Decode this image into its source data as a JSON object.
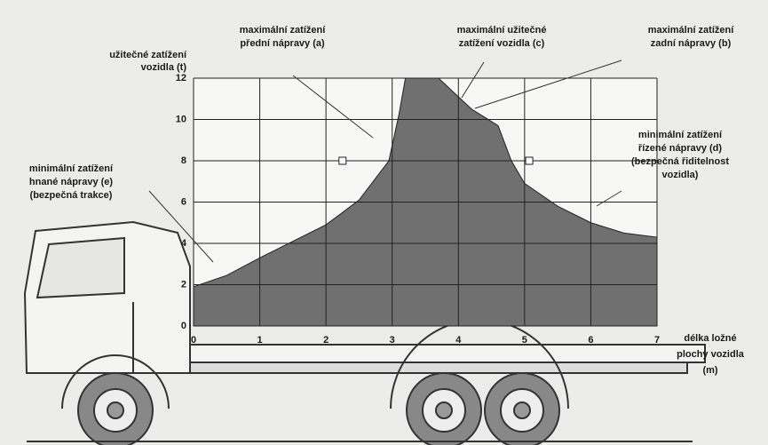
{
  "chart_data": {
    "type": "area",
    "y_label": [
      "užitečné zatížení",
      "vozidla (t)"
    ],
    "x_label": [
      "délka ložné",
      "plochy vozidla",
      "(m)"
    ],
    "x": [
      0,
      0.5,
      1,
      1.5,
      2,
      2.5,
      2.95,
      3.1,
      3.2,
      3.7,
      4.2,
      4.6,
      4.8,
      5,
      5.5,
      6,
      6.5,
      7
    ],
    "values": [
      1.9,
      2.45,
      3.3,
      4.1,
      4.9,
      6.1,
      8,
      10.2,
      12,
      12,
      10.5,
      9.7,
      8,
      6.9,
      5.8,
      5,
      4.5,
      4.3
    ],
    "color": "#707070",
    "points": {
      "x": [
        2.25,
        5.07
      ],
      "y": [
        8,
        8
      ]
    },
    "xlim": [
      0,
      7
    ],
    "ylim": [
      0,
      12
    ],
    "xticks": [
      0,
      1,
      2,
      3,
      4,
      5,
      6,
      7
    ],
    "yticks": [
      0,
      2,
      4,
      6,
      8,
      10,
      12
    ],
    "grid": true,
    "annotations": [
      [
        "maximální zatížení",
        "přední nápravy (a)"
      ],
      [
        "maximální užitečné",
        "zatížení vozidla (c)"
      ],
      [
        "maximální zatížení",
        "zadní nápravy (b)"
      ],
      [
        "minimální zatížení",
        "řízené nápravy (d)",
        "(bezpečná řiditelnost",
        "vozidla)"
      ],
      [
        "minimální zatížení",
        "hnané nápravy (e)",
        "(bezpečná trakce)"
      ]
    ]
  }
}
